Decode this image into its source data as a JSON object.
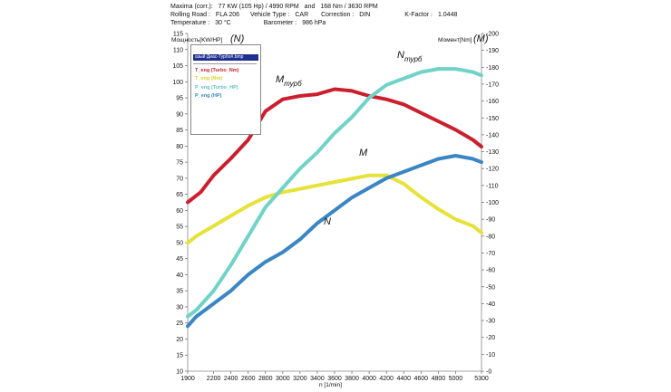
{
  "header": {
    "row1": [
      "Maxima (corr.):",
      "77 KW (105 Hp) / 4990 RPM",
      "and",
      "168 Nm / 3630 RPM"
    ],
    "row2": [
      "Rolling Road :",
      "FLA 206",
      "Vehicle Type :",
      "CAR",
      "Correction :",
      "DIN",
      "K-Factor :",
      "1.0448"
    ],
    "row3": [
      "Temperature :",
      "30 °C",
      "Barometer :",
      "986 hPa"
    ]
  },
  "legend": {
    "title": "азый Диас-Турбо#.bmp",
    "items": [
      {
        "label": "T_eng (Turbo_Nm)",
        "color": "#cc1f2e"
      },
      {
        "label": "T_eng (Nm)",
        "color": "#e6e23a"
      },
      {
        "label": "P_eng (Turbo_HP)",
        "color": "#6fd3c7"
      },
      {
        "label": "P_eng (HP)",
        "color": "#3a86c4"
      }
    ]
  },
  "annotations": {
    "m_turbo": {
      "main": "M",
      "sub": "турб"
    },
    "n_turbo": {
      "main": "N",
      "sub": "турб"
    },
    "m": {
      "main": "M"
    },
    "n": {
      "main": "N"
    },
    "left_unit": "(N)",
    "right_unit": "(M)"
  },
  "chart_data": {
    "type": "line",
    "xlabel": "n  [1/min]",
    "ylabel_left": "Мощность[KW/HP]",
    "ylabel_right": "Момент[Nm]",
    "xlim": [
      1900,
      5300
    ],
    "ylim_left": [
      10,
      115
    ],
    "ylim_right": [
      0,
      200
    ],
    "x_ticks": [
      1900,
      2200,
      2400,
      2600,
      2800,
      3000,
      3200,
      3400,
      3600,
      3800,
      4000,
      4200,
      4400,
      4600,
      4800,
      5000,
      5300
    ],
    "y_ticks_left": [
      10,
      15,
      20,
      25,
      30,
      35,
      40,
      45,
      50,
      55,
      60,
      65,
      70,
      75,
      80,
      85,
      90,
      95,
      100,
      105,
      110,
      115
    ],
    "y_ticks_right": [
      0,
      10,
      20,
      30,
      40,
      50,
      60,
      70,
      80,
      90,
      100,
      110,
      120,
      130,
      140,
      150,
      160,
      170,
      180,
      190,
      200
    ],
    "grid": false,
    "series": [
      {
        "name": "T_eng (Turbo_Nm)",
        "axis": "right",
        "color": "#cc1f2e",
        "x": [
          1900,
          2050,
          2200,
          2400,
          2600,
          2800,
          3000,
          3200,
          3400,
          3600,
          3800,
          4000,
          4200,
          4400,
          4600,
          4800,
          5000,
          5200,
          5300
        ],
        "y": [
          100,
          106,
          116,
          126,
          137,
          154,
          161,
          163,
          164,
          167,
          166,
          163,
          161,
          158,
          153,
          148,
          143,
          137,
          133
        ]
      },
      {
        "name": "T_eng (Nm)",
        "axis": "right",
        "color": "#e6e23a",
        "x": [
          1900,
          2000,
          2200,
          2400,
          2600,
          2800,
          3000,
          3200,
          3400,
          3600,
          3800,
          4000,
          4200,
          4400,
          4600,
          4800,
          5000,
          5200,
          5300
        ],
        "y": [
          76,
          80,
          86,
          92,
          98,
          103,
          106,
          108,
          110,
          112,
          114,
          116,
          116,
          111,
          103,
          96,
          90,
          86,
          82
        ]
      },
      {
        "name": "P_eng (Turbo_HP)",
        "axis": "left",
        "color": "#6fd3c7",
        "x": [
          1900,
          2000,
          2200,
          2400,
          2600,
          2800,
          3000,
          3200,
          3400,
          3600,
          3800,
          4000,
          4200,
          4400,
          4600,
          4800,
          5000,
          5200,
          5300
        ],
        "y": [
          27,
          29,
          35,
          43,
          52,
          61,
          67,
          73,
          78,
          84,
          89,
          95,
          99,
          101,
          103,
          104,
          104,
          103,
          102
        ]
      },
      {
        "name": "P_eng (HP)",
        "axis": "left",
        "color": "#3a86c4",
        "x": [
          1900,
          2000,
          2200,
          2400,
          2600,
          2800,
          3000,
          3200,
          3400,
          3600,
          3800,
          4000,
          4200,
          4400,
          4600,
          4800,
          5000,
          5200,
          5300
        ],
        "y": [
          24,
          27,
          31,
          35,
          40,
          44,
          47,
          51,
          56,
          60,
          64,
          67,
          70,
          72,
          74,
          76,
          77,
          76,
          75
        ]
      }
    ]
  }
}
